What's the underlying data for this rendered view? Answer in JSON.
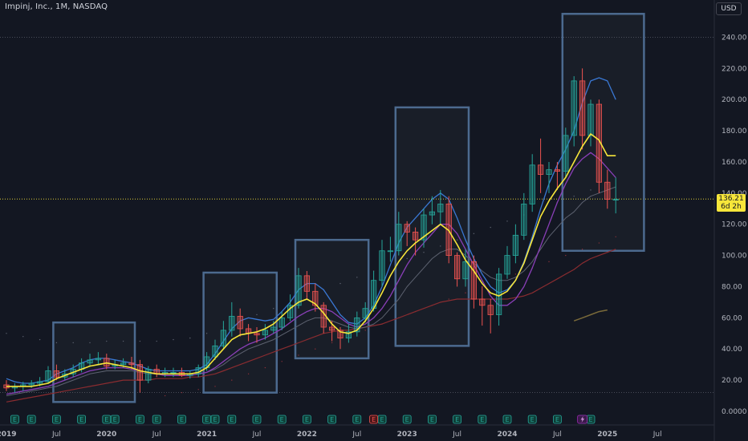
{
  "header": {
    "title": "Impinj, Inc., 1M, NASDAQ"
  },
  "currency": "USD",
  "price_tag": {
    "value": "136.21",
    "countdown": "6d 2h"
  },
  "colors": {
    "background": "#131722",
    "up": "#26a69a",
    "down": "#ef5350",
    "ma_fast": "#f7e63a",
    "ma_blue": "#3a78d4",
    "ma_purple": "#8a3fb8",
    "ma_grey": "#5d6270",
    "ma_red": "#8a2c30",
    "box": "#4c6a8f"
  },
  "chart_data": {
    "type": "candlestick",
    "title": "Impinj, Inc., 1M, NASDAQ",
    "ylim": [
      0,
      250
    ],
    "y_ticks": [
      "0.0000",
      "20.00",
      "40.00",
      "60.00",
      "80.00",
      "100.00",
      "120.00",
      "140.00",
      "160.00",
      "180.00",
      "200.00",
      "220.00",
      "240.00"
    ],
    "x_ticks": [
      "2019",
      "Jul",
      "2020",
      "Jul",
      "2021",
      "Jul",
      "2022",
      "Jul",
      "2023",
      "Jul",
      "2024",
      "Jul",
      "2025",
      "Jul"
    ],
    "x_tick_months": [
      0,
      6,
      12,
      18,
      24,
      30,
      36,
      42,
      48,
      54,
      60,
      66,
      72,
      78
    ],
    "reference_lines": [
      240,
      12
    ],
    "current_price": 136.21,
    "candles": {
      "o": [
        17,
        15,
        16,
        17,
        18,
        19,
        26,
        22,
        24,
        27,
        31,
        33,
        34,
        29,
        30,
        31,
        30,
        20,
        27,
        24,
        25,
        25,
        23,
        24,
        28,
        35,
        42,
        52,
        61,
        53,
        50,
        49,
        52,
        54,
        60,
        68,
        87,
        77,
        68,
        54,
        52,
        47,
        51,
        60,
        66,
        84,
        103,
        103,
        120,
        115,
        110,
        126,
        128,
        133,
        100,
        85,
        96,
        72,
        68,
        62,
        88,
        100,
        113,
        133,
        158,
        152,
        155,
        154,
        177,
        212,
        177,
        197,
        147,
        136
      ],
      "c": [
        15,
        16,
        17,
        18,
        19,
        26,
        22,
        24,
        27,
        31,
        33,
        34,
        29,
        30,
        31,
        30,
        20,
        27,
        24,
        25,
        25,
        23,
        24,
        28,
        35,
        42,
        52,
        61,
        53,
        50,
        49,
        52,
        54,
        60,
        68,
        87,
        77,
        68,
        54,
        52,
        47,
        51,
        60,
        66,
        84,
        103,
        103,
        120,
        115,
        110,
        126,
        128,
        133,
        100,
        85,
        96,
        72,
        68,
        62,
        88,
        100,
        113,
        133,
        158,
        152,
        155,
        154,
        177,
        212,
        177,
        197,
        147,
        136,
        136
      ],
      "h": [
        20,
        18,
        19,
        20,
        22,
        29,
        30,
        27,
        30,
        34,
        37,
        38,
        37,
        33,
        34,
        35,
        33,
        29,
        30,
        28,
        28,
        28,
        26,
        30,
        38,
        46,
        58,
        70,
        66,
        56,
        54,
        56,
        58,
        64,
        75,
        92,
        90,
        82,
        70,
        58,
        54,
        56,
        64,
        70,
        90,
        110,
        112,
        128,
        122,
        118,
        130,
        138,
        142,
        138,
        102,
        104,
        100,
        80,
        72,
        92,
        106,
        120,
        140,
        165,
        175,
        160,
        160,
        182,
        215,
        220,
        200,
        200,
        155,
        150
      ],
      "l": [
        13,
        12,
        13,
        15,
        16,
        18,
        20,
        20,
        22,
        25,
        29,
        30,
        27,
        27,
        28,
        27,
        12,
        18,
        22,
        22,
        22,
        22,
        21,
        22,
        26,
        33,
        40,
        48,
        48,
        45,
        44,
        46,
        50,
        52,
        58,
        66,
        72,
        64,
        50,
        45,
        40,
        44,
        48,
        57,
        64,
        80,
        96,
        100,
        106,
        100,
        105,
        120,
        120,
        95,
        80,
        80,
        66,
        55,
        50,
        55,
        85,
        95,
        110,
        128,
        140,
        140,
        142,
        150,
        170,
        168,
        170,
        140,
        130,
        127
      ]
    },
    "ma_yellow": [
      16,
      16,
      16,
      16,
      17,
      18,
      21,
      23,
      25,
      27,
      29,
      30,
      31,
      30,
      29,
      28,
      26,
      25,
      24,
      24,
      24,
      24,
      24,
      25,
      28,
      34,
      40,
      46,
      49,
      50,
      51,
      53,
      56,
      61,
      66,
      70,
      72,
      69,
      63,
      56,
      51,
      50,
      52,
      58,
      66,
      76,
      87,
      96,
      103,
      108,
      112,
      116,
      120,
      116,
      107,
      97,
      90,
      82,
      76,
      74,
      77,
      84,
      95,
      110,
      125,
      135,
      143,
      150,
      160,
      170,
      178,
      174,
      164,
      164
    ],
    "ma_blue": [
      21,
      19,
      18,
      18,
      19,
      20,
      24,
      26,
      28,
      31,
      33,
      34,
      34,
      33,
      32,
      31,
      29,
      27,
      26,
      26,
      26,
      26,
      26,
      27,
      30,
      37,
      45,
      53,
      58,
      60,
      59,
      58,
      59,
      64,
      70,
      78,
      82,
      82,
      78,
      70,
      62,
      57,
      56,
      60,
      68,
      80,
      94,
      108,
      118,
      124,
      130,
      136,
      140,
      136,
      124,
      110,
      98,
      88,
      80,
      76,
      78,
      84,
      96,
      112,
      130,
      146,
      158,
      168,
      180,
      198,
      212,
      214,
      212,
      200
    ],
    "ma_purple": [
      11,
      12,
      13,
      14,
      15,
      16,
      18,
      20,
      22,
      24,
      26,
      27,
      28,
      28,
      28,
      27,
      26,
      25,
      24,
      23,
      23,
      23,
      23,
      24,
      25,
      28,
      32,
      36,
      40,
      43,
      45,
      47,
      50,
      53,
      57,
      61,
      64,
      66,
      66,
      64,
      60,
      56,
      54,
      56,
      60,
      66,
      74,
      84,
      94,
      102,
      108,
      114,
      120,
      120,
      114,
      104,
      94,
      84,
      74,
      68,
      68,
      72,
      80,
      92,
      106,
      120,
      134,
      146,
      156,
      162,
      166,
      162,
      156,
      150
    ],
    "ma_grey": [
      10,
      11,
      12,
      13,
      14,
      15,
      16,
      18,
      20,
      22,
      24,
      25,
      26,
      26,
      26,
      26,
      25,
      24,
      24,
      23,
      23,
      23,
      23,
      24,
      25,
      27,
      30,
      34,
      37,
      40,
      42,
      44,
      46,
      49,
      52,
      55,
      58,
      60,
      60,
      58,
      56,
      54,
      53,
      54,
      56,
      60,
      66,
      72,
      80,
      86,
      92,
      98,
      102,
      104,
      104,
      100,
      95,
      90,
      86,
      84,
      84,
      86,
      90,
      96,
      104,
      112,
      118,
      124,
      128,
      134,
      138,
      140,
      142,
      144
    ],
    "ma_red": [
      6,
      7,
      8,
      9,
      10,
      11,
      12,
      13,
      14,
      15,
      16,
      17,
      18,
      19,
      20,
      20,
      20,
      20,
      21,
      21,
      21,
      21,
      22,
      22,
      23,
      24,
      26,
      28,
      30,
      32,
      34,
      36,
      38,
      40,
      42,
      44,
      46,
      48,
      50,
      51,
      52,
      52,
      53,
      54,
      55,
      56,
      58,
      60,
      62,
      64,
      66,
      68,
      70,
      71,
      72,
      72,
      72,
      72,
      72,
      72,
      72,
      73,
      74,
      76,
      79,
      82,
      85,
      88,
      91,
      95,
      98,
      100,
      102,
      104
    ],
    "dotted_200": {
      "start_month": 0,
      "values": [
        50,
        49,
        48,
        47,
        46,
        45,
        44,
        44,
        44,
        44,
        44,
        44,
        45,
        45,
        45,
        45,
        45,
        45,
        45,
        45,
        46,
        46,
        47,
        48,
        50,
        52,
        54,
        56,
        58,
        60,
        62,
        64,
        66,
        68,
        70,
        72,
        74,
        76,
        78,
        80,
        82,
        84,
        86,
        88,
        90,
        92,
        94,
        96,
        98,
        100,
        102,
        104,
        106,
        108,
        110,
        112,
        114,
        116,
        118,
        120,
        122,
        124,
        126,
        128,
        130,
        132,
        134,
        136,
        138,
        140,
        142,
        144,
        146,
        148
      ]
    },
    "dotted_low": {
      "start_month": 19,
      "values": [
        10,
        11,
        12,
        13,
        14,
        15,
        16,
        18,
        20,
        22,
        24,
        26,
        28,
        30,
        32,
        34,
        36,
        38,
        40,
        42,
        44,
        46,
        48,
        50,
        52,
        54,
        56,
        58,
        60,
        62,
        64,
        66,
        68,
        70,
        72,
        74,
        76,
        78,
        80,
        82,
        84,
        86,
        88,
        90,
        92,
        94,
        96,
        98,
        100,
        102,
        104,
        106,
        108,
        110,
        112
      ]
    },
    "olive_line": {
      "start_month": 68,
      "values": [
        58,
        60,
        62,
        64,
        65
      ]
    },
    "boxes": [
      {
        "from_month": 6,
        "to_month": 15,
        "low": 6,
        "high": 57
      },
      {
        "from_month": 24,
        "to_month": 32,
        "low": 12,
        "high": 89
      },
      {
        "from_month": 35,
        "to_month": 43,
        "low": 34,
        "high": 110
      },
      {
        "from_month": 47,
        "to_month": 55,
        "low": 42,
        "high": 195
      },
      {
        "from_month": 67,
        "to_month": 76,
        "low": 103,
        "high": 255
      }
    ],
    "earnings_months": [
      1,
      3,
      6,
      9,
      12,
      13,
      16,
      18,
      21,
      24,
      25,
      27,
      30,
      33,
      36,
      39,
      42,
      45,
      48,
      51,
      54,
      57,
      60,
      63,
      66,
      69,
      70
    ],
    "earnings_label": "E",
    "earnings_highlight_month": 44,
    "flash_marker_month": 69
  }
}
